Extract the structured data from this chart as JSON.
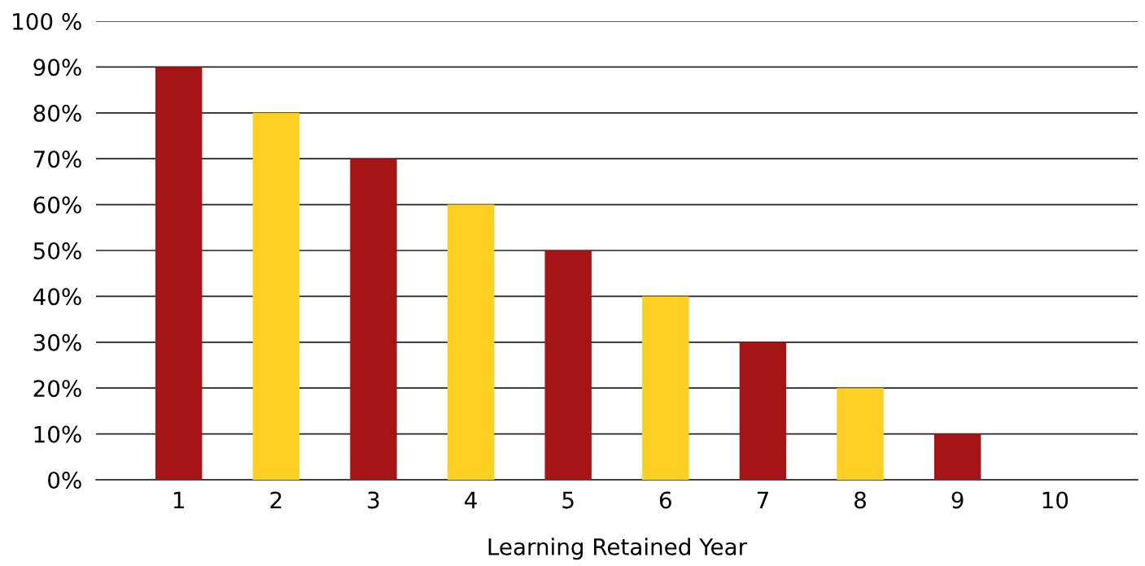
{
  "chart_data": {
    "type": "bar",
    "xlabel": "Learning Retained Year",
    "categories": [
      "1",
      "2",
      "3",
      "4",
      "5",
      "6",
      "7",
      "8",
      "9",
      "10"
    ],
    "values": [
      90,
      80,
      70,
      60,
      50,
      40,
      30,
      20,
      10,
      0
    ],
    "colors": [
      "#a51417",
      "#fdd023",
      "#a51417",
      "#fdd023",
      "#a51417",
      "#fdd023",
      "#a51417",
      "#fdd023",
      "#a51417",
      "#fdd023"
    ],
    "ylim": [
      0,
      100
    ],
    "yticks": [
      {
        "value": 0,
        "label": "0%"
      },
      {
        "value": 10,
        "label": "10%"
      },
      {
        "value": 20,
        "label": "20%"
      },
      {
        "value": 30,
        "label": "30%"
      },
      {
        "value": 40,
        "label": "40%"
      },
      {
        "value": 50,
        "label": "50%"
      },
      {
        "value": 60,
        "label": "60%"
      },
      {
        "value": 70,
        "label": "70%"
      },
      {
        "value": 80,
        "label": "80%"
      },
      {
        "value": 90,
        "label": "90%"
      },
      {
        "value": 100,
        "label": "100 %"
      }
    ],
    "grid": "y"
  }
}
